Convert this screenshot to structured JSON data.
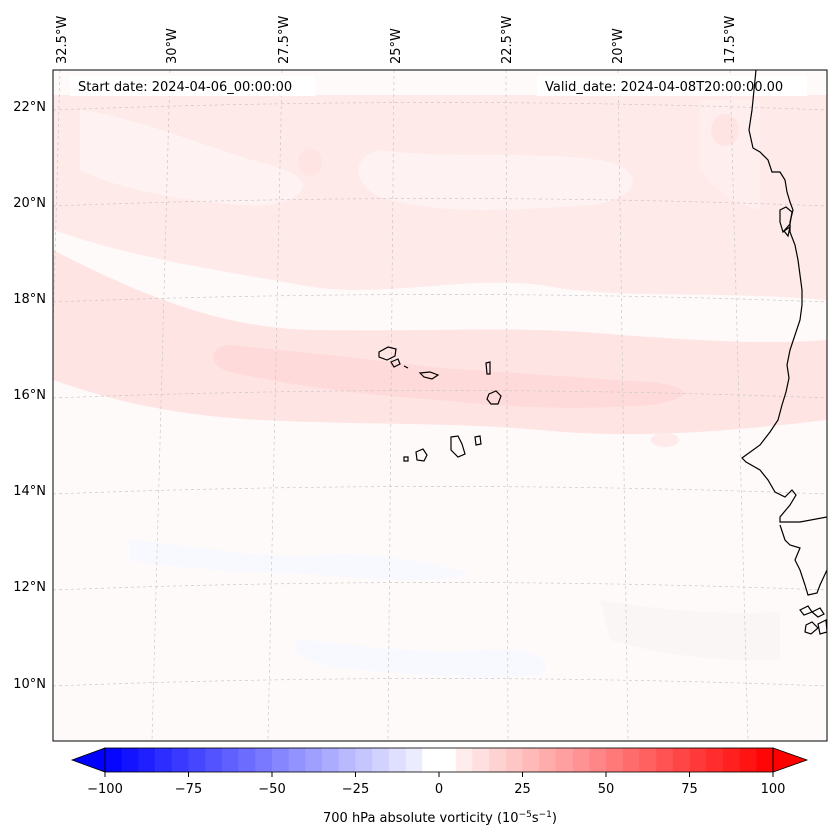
{
  "map": {
    "start_date_text": "Start date: 2024-04-06_00:00:00",
    "valid_date_text": "Valid_date: 2024-04-08T20:00:00.00",
    "lon_labels": [
      "32.5°W",
      "30°W",
      "27.5°W",
      "25°W",
      "22.5°W",
      "20°W",
      "17.5°W"
    ],
    "lat_labels": [
      "22°N",
      "20°N",
      "18°N",
      "16°N",
      "14°N",
      "12°N",
      "10°N"
    ],
    "features": [
      "Cape Verde islands",
      "West African coastline"
    ]
  },
  "colorbar": {
    "title_prefix": "700 hPa absolute vorticity (10",
    "title_exp1": "−5",
    "title_mid": "s",
    "title_exp2": "−1",
    "title_suffix": ")",
    "ticks": [
      "−100",
      "−75",
      "−50",
      "−25",
      "0",
      "25",
      "50",
      "75",
      "100"
    ],
    "min": -100,
    "max": 100,
    "negative_color": "#0000ff",
    "positive_color": "#ff0000"
  },
  "colors": {
    "land_outline": "#000000",
    "grid": "#c8c8c8"
  }
}
